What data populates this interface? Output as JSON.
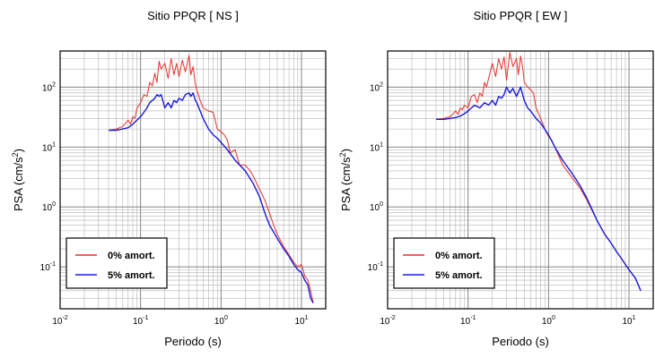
{
  "chart_data": [
    {
      "type": "line",
      "title": "Sitio PPQR [ NS ]",
      "xlabel": "Periodo (s)",
      "ylabel": "PSA (cm/s²)",
      "ylabel_base": "PSA (cm/s",
      "ylabel_sup": "2",
      "ylabel_end": ")",
      "x_scale": "log",
      "y_scale": "log",
      "xlim": [
        0.01,
        20
      ],
      "ylim": [
        0.02,
        400
      ],
      "x_ticks": [
        {
          "base": "10",
          "exp": "-2",
          "value": 0.01
        },
        {
          "base": "10",
          "exp": "-1",
          "value": 0.1
        },
        {
          "base": "10",
          "exp": "0",
          "value": 1
        },
        {
          "base": "10",
          "exp": "1",
          "value": 10
        }
      ],
      "y_ticks": [
        {
          "base": "10",
          "exp": "-1",
          "value": 0.1
        },
        {
          "base": "10",
          "exp": "0",
          "value": 1
        },
        {
          "base": "10",
          "exp": "1",
          "value": 10
        },
        {
          "base": "10",
          "exp": "2",
          "value": 100
        }
      ],
      "grid": true,
      "legend_position": "bottom-left",
      "series": [
        {
          "name": "0% amort.",
          "color": "#e8302a",
          "x": [
            0.04,
            0.05,
            0.06,
            0.07,
            0.075,
            0.08,
            0.085,
            0.09,
            0.1,
            0.11,
            0.12,
            0.13,
            0.14,
            0.15,
            0.16,
            0.17,
            0.18,
            0.2,
            0.22,
            0.24,
            0.26,
            0.28,
            0.3,
            0.33,
            0.36,
            0.4,
            0.42,
            0.45,
            0.48,
            0.5,
            0.55,
            0.6,
            0.7,
            0.8,
            0.9,
            1.0,
            1.1,
            1.2,
            1.3,
            1.5,
            1.7,
            2.0,
            2.3,
            2.6,
            3.0,
            3.5,
            4.0,
            4.5,
            5,
            6,
            7,
            8,
            9,
            10,
            11,
            12,
            13,
            14
          ],
          "y": [
            19,
            20,
            22,
            28,
            24,
            32,
            30,
            44,
            55,
            75,
            70,
            120,
            105,
            170,
            120,
            270,
            200,
            250,
            140,
            300,
            160,
            250,
            150,
            280,
            180,
            340,
            160,
            220,
            110,
            90,
            60,
            45,
            40,
            38,
            20,
            18,
            16,
            13,
            8,
            9,
            5,
            5,
            4,
            3,
            2,
            1.3,
            0.8,
            0.5,
            0.35,
            0.22,
            0.16,
            0.12,
            0.1,
            0.11,
            0.07,
            0.06,
            0.04,
            0.025
          ]
        },
        {
          "name": "5% amort.",
          "color": "#1a1adb",
          "x": [
            0.04,
            0.05,
            0.06,
            0.07,
            0.08,
            0.09,
            0.1,
            0.11,
            0.12,
            0.13,
            0.14,
            0.15,
            0.16,
            0.17,
            0.18,
            0.2,
            0.22,
            0.24,
            0.26,
            0.28,
            0.3,
            0.33,
            0.36,
            0.4,
            0.42,
            0.45,
            0.48,
            0.5,
            0.55,
            0.6,
            0.7,
            0.8,
            0.9,
            1.0,
            1.2,
            1.5,
            2.0,
            2.5,
            3.0,
            3.5,
            4.0,
            5,
            6,
            7,
            8,
            9,
            10,
            11,
            12,
            13,
            14
          ],
          "y": [
            19,
            19,
            20,
            21,
            24,
            28,
            32,
            38,
            45,
            55,
            60,
            65,
            75,
            70,
            75,
            45,
            55,
            45,
            60,
            55,
            65,
            60,
            75,
            80,
            70,
            80,
            60,
            55,
            40,
            30,
            20,
            16,
            14,
            12,
            9,
            6,
            4,
            2.5,
            1.5,
            0.8,
            0.5,
            0.3,
            0.2,
            0.15,
            0.11,
            0.09,
            0.08,
            0.06,
            0.05,
            0.03,
            0.025
          ]
        }
      ]
    },
    {
      "type": "line",
      "title": "Sitio PPQR [ EW ]",
      "xlabel": "Periodo (s)",
      "ylabel": "PSA (cm/s²)",
      "ylabel_base": "PSA (cm/s",
      "ylabel_sup": "2",
      "ylabel_end": ")",
      "x_scale": "log",
      "y_scale": "log",
      "xlim": [
        0.01,
        20
      ],
      "ylim": [
        0.02,
        400
      ],
      "x_ticks": [
        {
          "base": "10",
          "exp": "-2",
          "value": 0.01
        },
        {
          "base": "10",
          "exp": "-1",
          "value": 0.1
        },
        {
          "base": "10",
          "exp": "0",
          "value": 1
        },
        {
          "base": "10",
          "exp": "1",
          "value": 10
        }
      ],
      "y_ticks": [
        {
          "base": "10",
          "exp": "-1",
          "value": 0.1
        },
        {
          "base": "10",
          "exp": "0",
          "value": 1
        },
        {
          "base": "10",
          "exp": "1",
          "value": 10
        },
        {
          "base": "10",
          "exp": "2",
          "value": 100
        }
      ],
      "grid": true,
      "legend_position": "bottom-left",
      "series": [
        {
          "name": "0% amort.",
          "color": "#e8302a",
          "x": [
            0.04,
            0.05,
            0.06,
            0.07,
            0.075,
            0.08,
            0.085,
            0.09,
            0.1,
            0.11,
            0.12,
            0.13,
            0.14,
            0.15,
            0.16,
            0.17,
            0.18,
            0.2,
            0.22,
            0.24,
            0.26,
            0.28,
            0.3,
            0.33,
            0.36,
            0.4,
            0.42,
            0.45,
            0.48,
            0.5,
            0.55,
            0.6,
            0.65,
            0.7,
            0.8,
            0.9,
            1.0,
            1.1,
            1.2,
            1.5,
            2.0,
            2.5,
            3.0,
            4.0,
            5,
            6,
            7,
            8,
            9,
            10,
            12,
            14
          ],
          "y": [
            29,
            30,
            32,
            40,
            35,
            45,
            42,
            50,
            45,
            70,
            75,
            55,
            80,
            70,
            120,
            100,
            140,
            250,
            150,
            300,
            200,
            320,
            130,
            380,
            220,
            300,
            160,
            330,
            200,
            120,
            100,
            90,
            80,
            45,
            30,
            20,
            15,
            13,
            10,
            5,
            3,
            2,
            1.3,
            0.6,
            0.35,
            0.25,
            0.18,
            0.14,
            0.11,
            0.09,
            0.065,
            0.04
          ]
        },
        {
          "name": "5% amort.",
          "color": "#1a1adb",
          "x": [
            0.04,
            0.05,
            0.06,
            0.07,
            0.08,
            0.09,
            0.1,
            0.12,
            0.14,
            0.16,
            0.18,
            0.2,
            0.22,
            0.24,
            0.26,
            0.28,
            0.3,
            0.33,
            0.36,
            0.4,
            0.45,
            0.5,
            0.55,
            0.6,
            0.7,
            0.8,
            1.0,
            1.2,
            1.5,
            2.0,
            2.5,
            3.0,
            4.0,
            5,
            6,
            7,
            8,
            9,
            10,
            12,
            14
          ],
          "y": [
            29,
            29,
            30,
            31,
            33,
            36,
            40,
            50,
            45,
            55,
            50,
            60,
            50,
            70,
            65,
            75,
            100,
            80,
            95,
            70,
            100,
            60,
            45,
            40,
            30,
            25,
            16,
            10,
            6,
            3.5,
            2.2,
            1.4,
            0.6,
            0.35,
            0.25,
            0.18,
            0.14,
            0.11,
            0.09,
            0.065,
            0.04
          ]
        }
      ]
    }
  ]
}
